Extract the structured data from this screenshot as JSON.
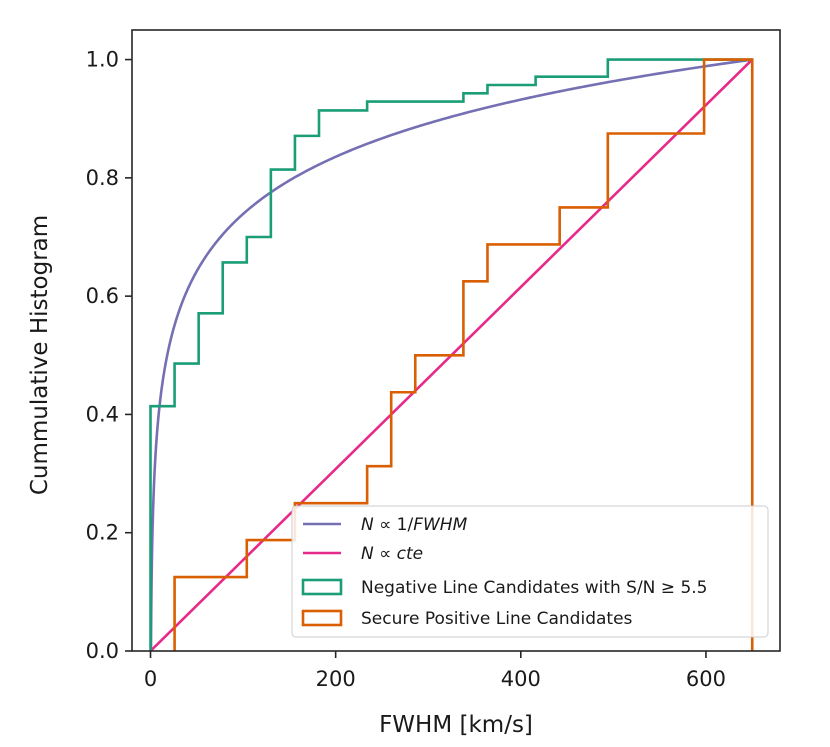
{
  "chart_data": {
    "type": "line",
    "title": "",
    "xlabel": "FWHM [km/s]",
    "ylabel": "Cummulative Histogram",
    "xlim": [
      -20,
      680
    ],
    "ylim": [
      0,
      1.05
    ],
    "x_ticks": [
      0,
      200,
      400,
      600
    ],
    "x_tick_labels": [
      "0",
      "200",
      "400",
      "600"
    ],
    "y_ticks": [
      0,
      0.2,
      0.4,
      0.6,
      0.8,
      1.0
    ],
    "y_tick_labels": [
      "0.0",
      "0.2",
      "0.4",
      "0.6",
      "0.8",
      "1.0"
    ],
    "grid": false,
    "legend_position": "lower-right",
    "series": [
      {
        "name": "N ∝ 1/FWHM",
        "legend_parts": [
          "N",
          " ∝ 1/",
          "FWHM"
        ],
        "kind": "curve",
        "color": "#7570b3",
        "x_min": 0.5,
        "x_max": 650
      },
      {
        "name": "N ∝ cte",
        "legend_parts": [
          "N",
          " ∝ ",
          "cte"
        ],
        "kind": "line",
        "color": "#e7298a",
        "points": [
          [
            0,
            0
          ],
          [
            650,
            1.0
          ]
        ]
      },
      {
        "name": "Negative Line Candidates with S/N ≥ 5.5",
        "kind": "step",
        "color": "#1b9e77",
        "points": [
          [
            0,
            0
          ],
          [
            0,
            0.414
          ],
          [
            26,
            0.414
          ],
          [
            26,
            0.486
          ],
          [
            52,
            0.486
          ],
          [
            52,
            0.571
          ],
          [
            78,
            0.571
          ],
          [
            78,
            0.657
          ],
          [
            104,
            0.657
          ],
          [
            104,
            0.7
          ],
          [
            130,
            0.7
          ],
          [
            130,
            0.814
          ],
          [
            156,
            0.814
          ],
          [
            156,
            0.871
          ],
          [
            182,
            0.871
          ],
          [
            182,
            0.914
          ],
          [
            234,
            0.914
          ],
          [
            234,
            0.929
          ],
          [
            338,
            0.929
          ],
          [
            338,
            0.943
          ],
          [
            364,
            0.943
          ],
          [
            364,
            0.957
          ],
          [
            416,
            0.957
          ],
          [
            416,
            0.971
          ],
          [
            494,
            0.971
          ],
          [
            494,
            1.0
          ],
          [
            650,
            1.0
          ]
        ]
      },
      {
        "name": "Secure Positive Line Candidates",
        "kind": "step",
        "color": "#d95f02",
        "points": [
          [
            26,
            0
          ],
          [
            26,
            0.125
          ],
          [
            104,
            0.125
          ],
          [
            104,
            0.1875
          ],
          [
            156,
            0.1875
          ],
          [
            156,
            0.25
          ],
          [
            234,
            0.25
          ],
          [
            234,
            0.3125
          ],
          [
            260,
            0.3125
          ],
          [
            260,
            0.4375
          ],
          [
            286,
            0.4375
          ],
          [
            286,
            0.5
          ],
          [
            338,
            0.5
          ],
          [
            338,
            0.625
          ],
          [
            364,
            0.625
          ],
          [
            364,
            0.6875
          ],
          [
            442,
            0.6875
          ],
          [
            442,
            0.75
          ],
          [
            494,
            0.75
          ],
          [
            494,
            0.875
          ],
          [
            598,
            0.875
          ],
          [
            598,
            1.0
          ],
          [
            650,
            1.0
          ],
          [
            650,
            0
          ]
        ]
      }
    ]
  }
}
